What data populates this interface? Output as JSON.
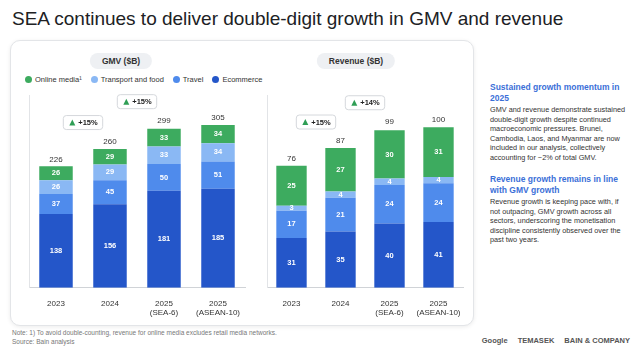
{
  "title": "SEA continues to deliver double-digit growth in GMV and revenue",
  "chart_data": [
    {
      "type": "bar",
      "title": "GMV ($B)",
      "stacked": true,
      "data_labels": true,
      "legend": "top",
      "grid": false,
      "tick_labels": "x",
      "categories": [
        "2023",
        "2024",
        "2025 (SEA-6)",
        "2025 (ASEAN-10)"
      ],
      "ylim": [
        0,
        360
      ],
      "series": [
        {
          "name": "Ecommerce",
          "color": "#2456c9",
          "values": [
            138,
            156,
            181,
            185
          ]
        },
        {
          "name": "Travel",
          "color": "#4f8bec",
          "values": [
            37,
            45,
            50,
            51
          ]
        },
        {
          "name": "Transport and food",
          "color": "#8ab8f4",
          "values": [
            26,
            29,
            33,
            34
          ]
        },
        {
          "name": "Online media¹",
          "color": "#3dab5f",
          "values": [
            26,
            29,
            33,
            34
          ]
        }
      ],
      "totals": [
        226,
        260,
        299,
        305
      ],
      "annotations": [
        {
          "text": "+15%",
          "between": [
            "2023",
            "2024"
          ]
        },
        {
          "text": "+15%",
          "between": [
            "2024",
            "2025 (SEA-6)"
          ]
        }
      ]
    },
    {
      "type": "bar",
      "title": "Revenue ($B)",
      "stacked": true,
      "data_labels": true,
      "grid": false,
      "tick_labels": "x",
      "categories": [
        "2023",
        "2024",
        "2025 (SEA-6)",
        "2025 (ASEAN-10)"
      ],
      "ylim": [
        0,
        120
      ],
      "series": [
        {
          "color": "#2456c9",
          "values": [
            31,
            35,
            40,
            41
          ]
        },
        {
          "color": "#4f8bec",
          "values": [
            17,
            21,
            24,
            24
          ]
        },
        {
          "color": "#8ab8f4",
          "values": [
            3,
            4,
            4,
            4
          ]
        },
        {
          "color": "#3dab5f",
          "values": [
            25,
            27,
            30,
            31
          ]
        }
      ],
      "totals": [
        76,
        87,
        99,
        100
      ],
      "annotations": [
        {
          "text": "+15%",
          "between": [
            "2023",
            "2024"
          ]
        },
        {
          "text": "+14%",
          "between": [
            "2024",
            "2025 (SEA-6)"
          ]
        }
      ]
    }
  ],
  "sidebar": [
    {
      "heading": "Sustained growth momentum in 2025",
      "text": "GMV and revenue demonstrate sustained double-digit growth despite continued macroeconomic pressures. Brunei, Cambodia, Laos, and Myanmar are now included in our analysis, collectively accounting for ~2% of total GMV."
    },
    {
      "heading": "Revenue growth remains in line with GMV growth",
      "text": "Revenue growth is keeping pace with, if not outpacing, GMV growth across all sectors, underscoring the monetisation discipline consistently observed over the past two years."
    }
  ],
  "notes": [
    "Note: 1) To avoid double-counting, revenue for online media excludes retail media networks.",
    "Source: Bain analysis"
  ],
  "logos": [
    "Google",
    "TEMASEK",
    "BAIN & COMPANY"
  ]
}
